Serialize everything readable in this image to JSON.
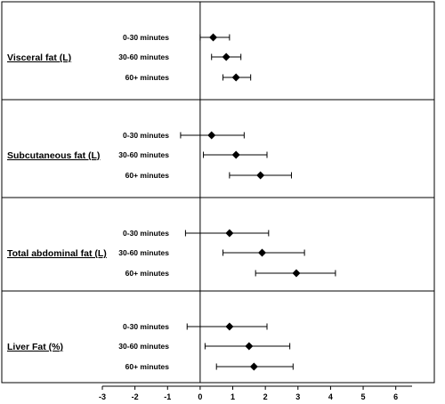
{
  "chart_data": {
    "type": "forest",
    "x_axis": {
      "min": -3,
      "max": 6.5,
      "ticks": [
        -3,
        -2,
        -1,
        0,
        1,
        2,
        3,
        4,
        5,
        6
      ],
      "reference_line": 0,
      "label": ""
    },
    "groups": [
      {
        "label": "Visceral fat (L)",
        "rows": [
          {
            "label": "0-30 minutes",
            "estimate": 0.4,
            "lower": 0.0,
            "upper": 0.9
          },
          {
            "label": "30-60 minutes",
            "estimate": 0.8,
            "lower": 0.35,
            "upper": 1.25
          },
          {
            "label": "60+ minutes",
            "estimate": 1.1,
            "lower": 0.7,
            "upper": 1.55
          }
        ]
      },
      {
        "label": "Subcutaneous fat (L)",
        "rows": [
          {
            "label": "0-30 minutes",
            "estimate": 0.35,
            "lower": -0.6,
            "upper": 1.35
          },
          {
            "label": "30-60 minutes",
            "estimate": 1.1,
            "lower": 0.1,
            "upper": 2.05
          },
          {
            "label": "60+ minutes",
            "estimate": 1.85,
            "lower": 0.9,
            "upper": 2.8
          }
        ]
      },
      {
        "label": "Total abdominal fat (L)",
        "rows": [
          {
            "label": "0-30 minutes",
            "estimate": 0.9,
            "lower": -0.45,
            "upper": 2.1
          },
          {
            "label": "30-60 minutes",
            "estimate": 1.9,
            "lower": 0.7,
            "upper": 3.2
          },
          {
            "label": "60+ minutes",
            "estimate": 2.95,
            "lower": 1.7,
            "upper": 4.15
          }
        ]
      },
      {
        "label": "Liver Fat (%)",
        "rows": [
          {
            "label": "0-30 minutes",
            "estimate": 0.9,
            "lower": -0.4,
            "upper": 2.05
          },
          {
            "label": "30-60 minutes",
            "estimate": 1.5,
            "lower": 0.15,
            "upper": 2.75
          },
          {
            "label": "60+ minutes",
            "estimate": 1.65,
            "lower": 0.5,
            "upper": 2.85
          }
        ]
      }
    ]
  }
}
